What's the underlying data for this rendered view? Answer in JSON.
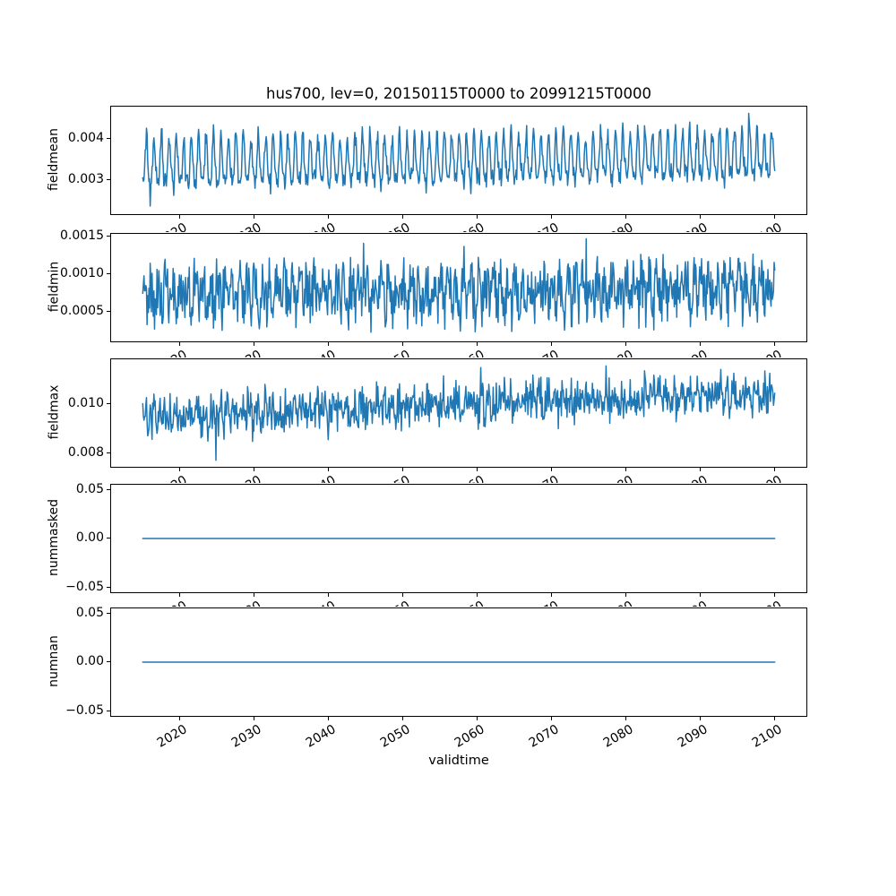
{
  "figure": {
    "title": "hus700, lev=0, 20150115T0000 to 20991215T0000",
    "xlabel": "validtime",
    "line_color": "#1f77b4",
    "frame_color": "#000000",
    "background_color": "#ffffff"
  },
  "chart_data": {
    "type": "line",
    "title": "hus700, lev=0, 20150115T0000 to 20991215T0000",
    "xlabel": "validtime",
    "grid": false,
    "legend": "none",
    "x": {
      "start": 2015.0417,
      "end": 2099.9583,
      "step_years": 0.0833333,
      "n_points": 1020,
      "sampling": "monthly"
    },
    "xlim": [
      2010.79,
      2104.21
    ],
    "xticks": [
      {
        "value": 2020,
        "label": "2020"
      },
      {
        "value": 2030,
        "label": "2030"
      },
      {
        "value": 2040,
        "label": "2040"
      },
      {
        "value": 2050,
        "label": "2050"
      },
      {
        "value": 2060,
        "label": "2060"
      },
      {
        "value": 2070,
        "label": "2070"
      },
      {
        "value": 2080,
        "label": "2080"
      },
      {
        "value": 2090,
        "label": "2090"
      },
      {
        "value": 2100,
        "label": "2100"
      }
    ],
    "seed": 12345,
    "subplots": [
      {
        "name": "fieldmean",
        "ylabel": "fieldmean",
        "ylim": [
          0.002174,
          0.004783
        ],
        "yticks": [
          {
            "value": 0.003,
            "label": "0.003"
          },
          {
            "value": 0.004,
            "label": "0.004"
          }
        ],
        "series": {
          "kind": "seasonal-noisy",
          "base": 0.00336,
          "trend_per_year": 2.2e-06,
          "seasonal_amplitude": 0.00054,
          "seasonal_phase": -2.0,
          "harmonic2_amplitude": 0.00016,
          "harmonic2_phase": 1.1,
          "noise_amplitude": 0.00013,
          "noise_type": "gaussian",
          "clamp": [
            0.00232,
            0.00467
          ],
          "outliers": [
            {
              "t": 2016.04,
              "value": 0.00237
            },
            {
              "t": 2096.5,
              "value": 0.00462
            }
          ]
        }
      },
      {
        "name": "fieldmin",
        "ylabel": "fieldmin",
        "ylim": [
          0.000107,
          0.001536
        ],
        "yticks": [
          {
            "value": 0.0005,
            "label": "0.0005"
          },
          {
            "value": 0.001,
            "label": "0.0010"
          },
          {
            "value": 0.0015,
            "label": "0.0015"
          }
        ],
        "series": {
          "kind": "seasonal-noisy",
          "base": 0.00073,
          "trend_per_year": 8e-07,
          "seasonal_amplitude": 0.00016,
          "seasonal_phase": 0.8,
          "harmonic2_amplitude": 6e-05,
          "harmonic2_phase": 2.3,
          "noise_amplitude": 0.00034,
          "noise_type": "uniform",
          "clamp": [
            0.00019,
            0.00146
          ],
          "outliers": [
            {
              "t": 2044.7,
              "value": 0.00141
            },
            {
              "t": 2058.2,
              "value": 0.00137
            },
            {
              "t": 2074.6,
              "value": 0.00147
            }
          ]
        }
      },
      {
        "name": "fieldmax",
        "ylabel": "fieldmax",
        "ylim": [
          0.007455,
          0.011818
        ],
        "yticks": [
          {
            "value": 0.008,
            "label": "0.008"
          },
          {
            "value": 0.01,
            "label": "0.010"
          }
        ],
        "series": {
          "kind": "seasonal-noisy",
          "base": 0.00948,
          "trend_per_year": 1.15e-05,
          "seasonal_amplitude": 0.00022,
          "seasonal_phase": -1.2,
          "harmonic2_amplitude": 8e-05,
          "harmonic2_phase": 0.4,
          "noise_amplitude": 0.0004,
          "noise_type": "gaussian",
          "clamp": [
            0.00772,
            0.01158
          ],
          "outliers": [
            {
              "t": 2024.88,
              "value": 0.00772
            },
            {
              "t": 2060.5,
              "value": 0.01148
            },
            {
              "t": 2077.3,
              "value": 0.01155
            }
          ]
        }
      },
      {
        "name": "nummasked",
        "ylabel": "nummasked",
        "ylim": [
          -0.055,
          0.055
        ],
        "yticks": [
          {
            "value": -0.05,
            "label": "−0.05"
          },
          {
            "value": 0.0,
            "label": "0.00"
          },
          {
            "value": 0.05,
            "label": "0.05"
          }
        ],
        "series": {
          "kind": "constant",
          "value": 0.0
        }
      },
      {
        "name": "numnan",
        "ylabel": "numnan",
        "ylim": [
          -0.055,
          0.055
        ],
        "yticks": [
          {
            "value": -0.05,
            "label": "−0.05"
          },
          {
            "value": 0.0,
            "label": "0.00"
          },
          {
            "value": 0.05,
            "label": "0.05"
          }
        ],
        "series": {
          "kind": "constant",
          "value": 0.0
        }
      }
    ]
  }
}
